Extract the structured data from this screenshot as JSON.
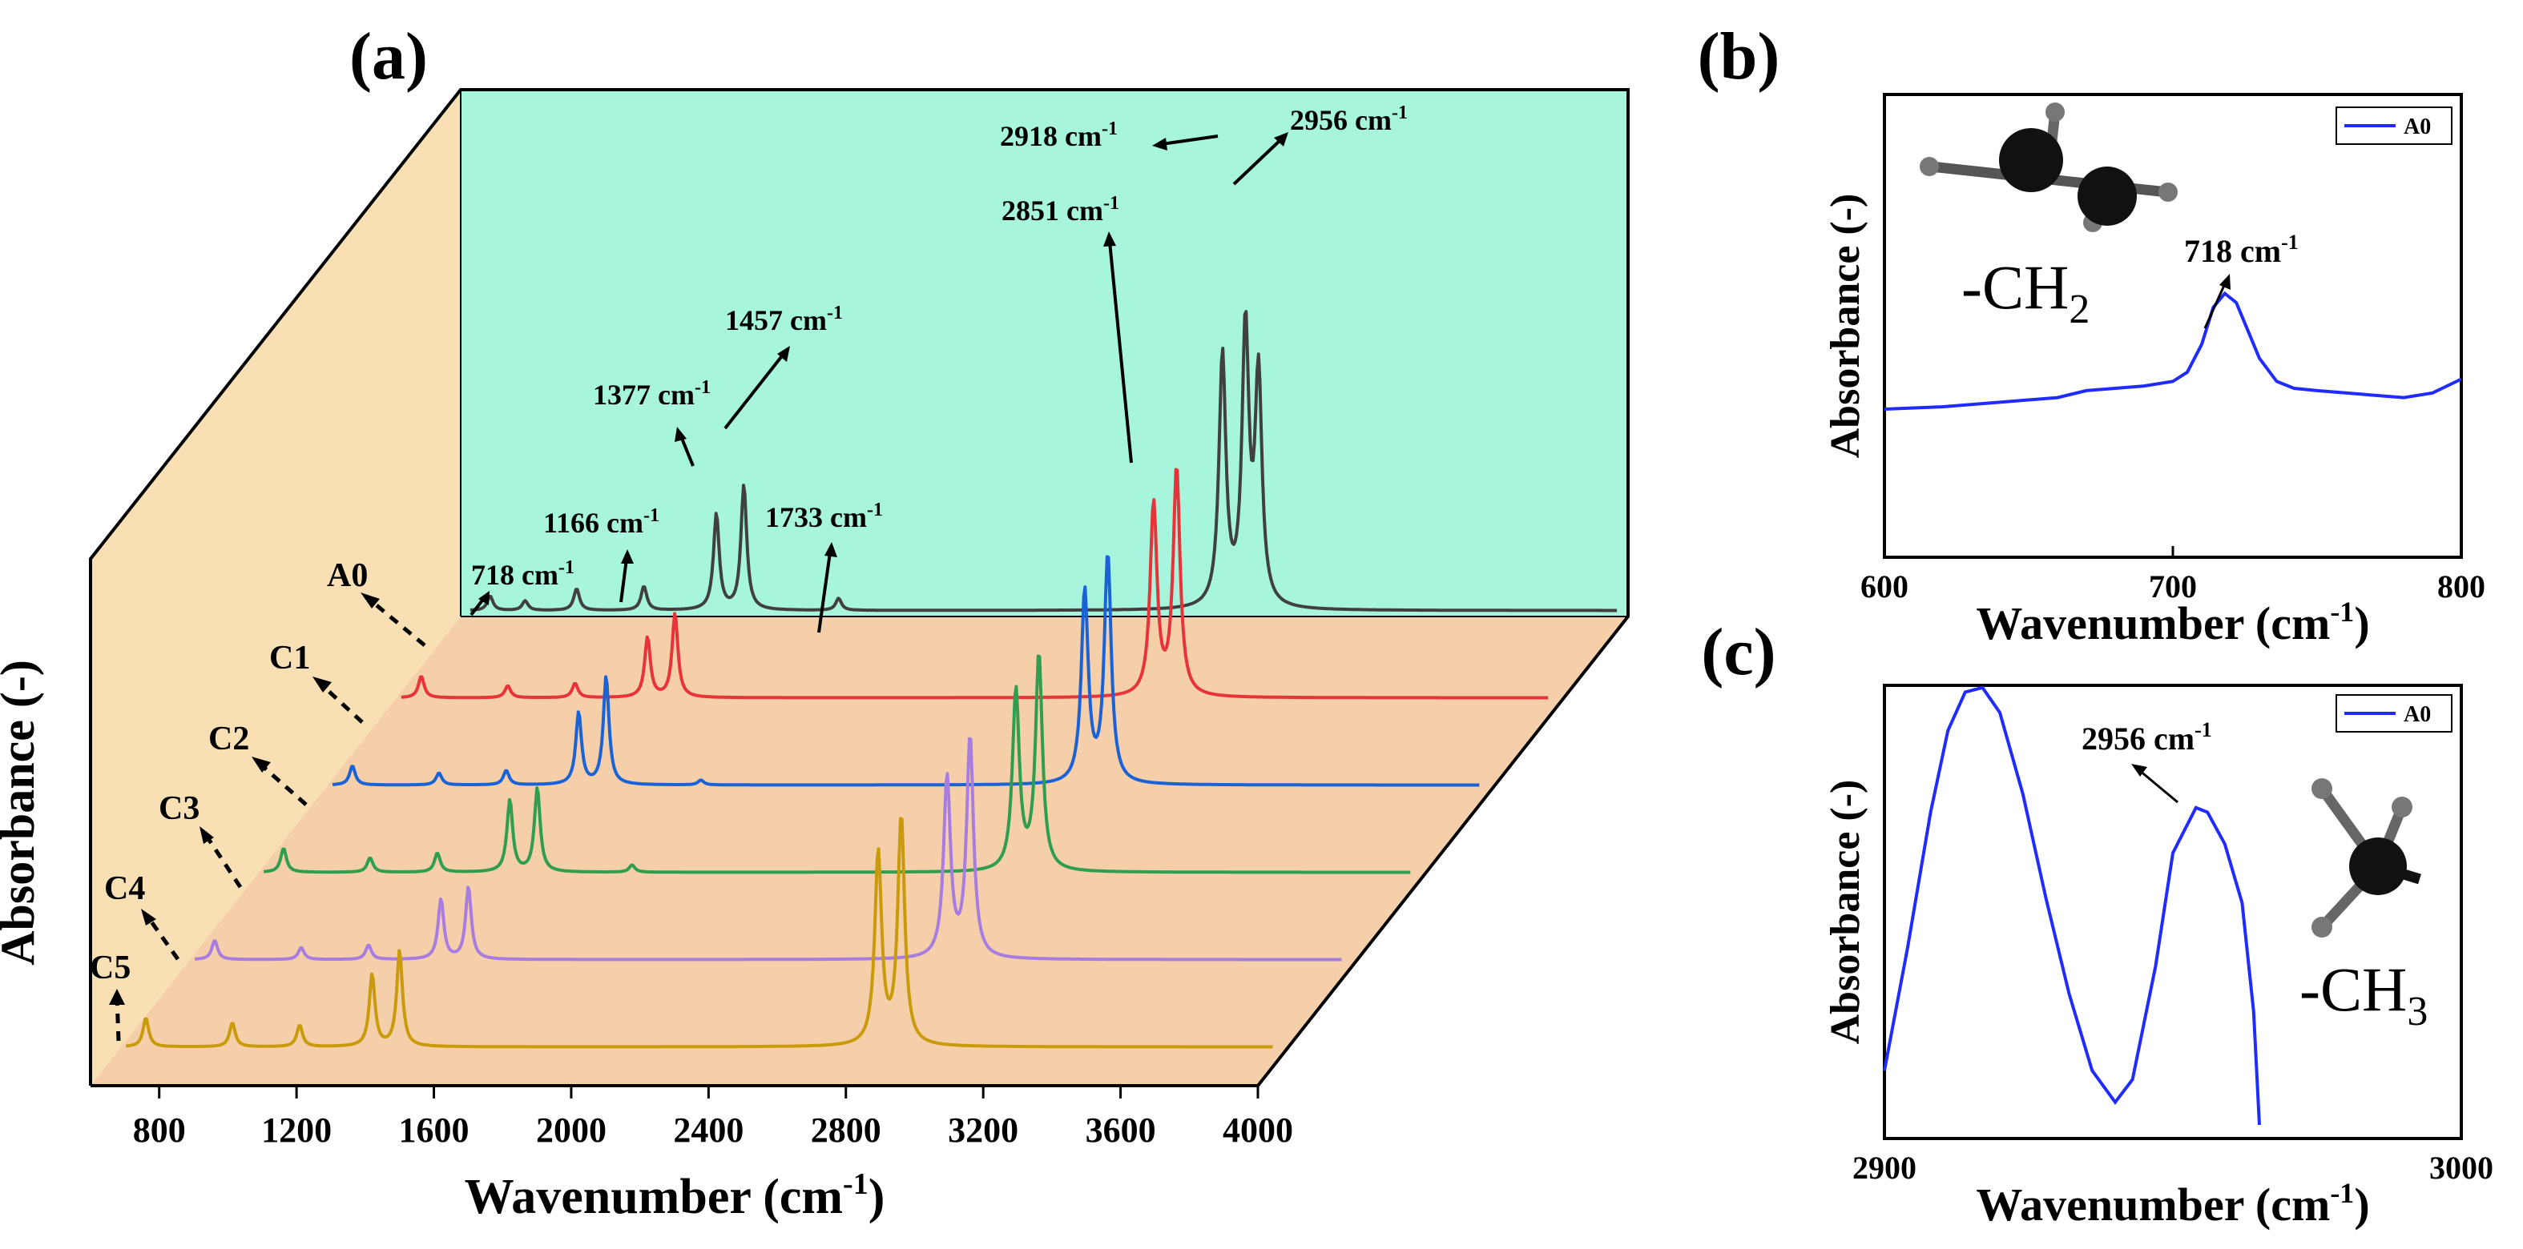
{
  "chart_data": [
    {
      "panel": "(a)",
      "type": "line",
      "style": "3D waterfall (stacked offset spectra)",
      "xlabel_main": "Wavenumber (cm",
      "xlabel_sup": "-1",
      "xlabel_tail": ")",
      "ylabel": "Absorbance (-)",
      "xlim": [
        600,
        4000
      ],
      "xticks": [
        800,
        1200,
        1600,
        2000,
        2400,
        2800,
        3200,
        3600,
        4000
      ],
      "colors": {
        "back_wall": "#a8f5dd",
        "side_wall": "#f8dfb4",
        "floor": "#f5cfaa",
        "A0": "#404040",
        "C1": "#e8333a",
        "C2": "#1a63d6",
        "C3": "#2f9e4f",
        "C4": "#a77de0",
        "C5": "#c99a0a"
      },
      "series": [
        {
          "name": "A0",
          "peaks": [
            [
              718,
              0.06
            ],
            [
              820,
              0.04
            ],
            [
              970,
              0.09
            ],
            [
              1166,
              0.1
            ],
            [
              1377,
              0.4
            ],
            [
              1457,
              0.52
            ],
            [
              1733,
              0.05
            ],
            [
              2851,
              1.05
            ],
            [
              2918,
              1.15
            ],
            [
              2956,
              0.95
            ]
          ]
        },
        {
          "name": "C1",
          "peaks": [
            [
              718,
              0.09
            ],
            [
              970,
              0.05
            ],
            [
              1166,
              0.06
            ],
            [
              1377,
              0.25
            ],
            [
              1457,
              0.35
            ],
            [
              2851,
              0.8
            ],
            [
              2918,
              0.95
            ]
          ]
        },
        {
          "name": "C2",
          "peaks": [
            [
              718,
              0.08
            ],
            [
              970,
              0.05
            ],
            [
              1166,
              0.06
            ],
            [
              1377,
              0.3
            ],
            [
              1457,
              0.45
            ],
            [
              1733,
              0.02
            ],
            [
              2851,
              0.8
            ],
            [
              2918,
              0.95
            ]
          ]
        },
        {
          "name": "C3",
          "peaks": [
            [
              718,
              0.1
            ],
            [
              970,
              0.06
            ],
            [
              1166,
              0.08
            ],
            [
              1377,
              0.3
            ],
            [
              1457,
              0.35
            ],
            [
              1733,
              0.03
            ],
            [
              2851,
              0.75
            ],
            [
              2918,
              0.9
            ]
          ]
        },
        {
          "name": "C4",
          "peaks": [
            [
              718,
              0.08
            ],
            [
              970,
              0.05
            ],
            [
              1166,
              0.06
            ],
            [
              1377,
              0.25
            ],
            [
              1457,
              0.3
            ],
            [
              2851,
              0.75
            ],
            [
              2918,
              0.92
            ]
          ]
        },
        {
          "name": "C5",
          "peaks": [
            [
              718,
              0.12
            ],
            [
              970,
              0.1
            ],
            [
              1166,
              0.09
            ],
            [
              1377,
              0.3
            ],
            [
              1457,
              0.4
            ],
            [
              2851,
              0.8
            ],
            [
              2918,
              0.95
            ]
          ]
        }
      ],
      "annotations": [
        {
          "label": "718 cm",
          "sup": "-1"
        },
        {
          "label": "1166 cm",
          "sup": "-1"
        },
        {
          "label": "1377 cm",
          "sup": "-1"
        },
        {
          "label": "1457 cm",
          "sup": "-1"
        },
        {
          "label": "1733 cm",
          "sup": "-1"
        },
        {
          "label": "2851 cm",
          "sup": "-1"
        },
        {
          "label": "2918 cm",
          "sup": "-1"
        },
        {
          "label": "2956 cm",
          "sup": "-1"
        }
      ]
    },
    {
      "panel": "(b)",
      "type": "line",
      "xlabel_main": "Wavenumber (cm",
      "xlabel_sup": "-1",
      "xlabel_tail": ")",
      "ylabel": "Absorbance (-)",
      "xlim": [
        600,
        800
      ],
      "xticks": [
        600,
        700,
        800
      ],
      "legend": "A0",
      "legend_position": "top-right",
      "line_color": "#1f2bff",
      "peak_label": "718 cm",
      "peak_sup": "-1",
      "molecule": "-CH",
      "molecule_sub": "2",
      "x": [
        600,
        620,
        640,
        660,
        670,
        680,
        690,
        700,
        705,
        710,
        714,
        718,
        722,
        726,
        730,
        736,
        742,
        750,
        760,
        770,
        780,
        790,
        800
      ],
      "y": [
        0.32,
        0.325,
        0.335,
        0.345,
        0.36,
        0.365,
        0.37,
        0.38,
        0.4,
        0.46,
        0.54,
        0.57,
        0.55,
        0.49,
        0.43,
        0.38,
        0.365,
        0.36,
        0.355,
        0.35,
        0.345,
        0.355,
        0.385
      ]
    },
    {
      "panel": "(c)",
      "type": "line",
      "xlabel_main": "Wavenumber (cm",
      "xlabel_sup": "-1",
      "xlabel_tail": ")",
      "ylabel": "Absorbance (-)",
      "xlim": [
        2900,
        3000
      ],
      "xticks": [
        2900,
        3000
      ],
      "legend": "A0",
      "legend_position": "top-right",
      "line_color": "#1f2bff",
      "peak_label": "2956 cm",
      "peak_sup": "-1",
      "molecule": "-CH",
      "molecule_sub": "3",
      "x": [
        2900,
        2904,
        2908,
        2911,
        2914,
        2917,
        2920,
        2924,
        2928,
        2932,
        2936,
        2940,
        2943,
        2947,
        2950,
        2954,
        2956,
        2959,
        2962,
        2964,
        2965
      ],
      "y": [
        0.15,
        0.42,
        0.72,
        0.9,
        0.985,
        0.995,
        0.94,
        0.76,
        0.53,
        0.32,
        0.15,
        0.08,
        0.13,
        0.38,
        0.63,
        0.73,
        0.72,
        0.65,
        0.52,
        0.28,
        0.03
      ]
    }
  ]
}
